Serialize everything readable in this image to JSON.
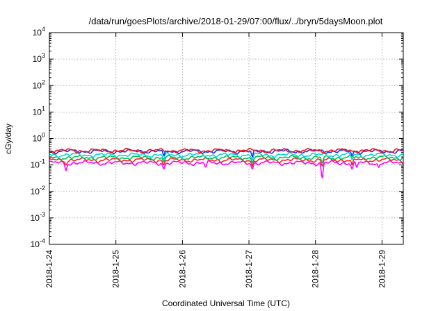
{
  "chart_data": {
    "type": "line",
    "title": "/data/run/goesPlots/archive/2018-01-29/07:00/flux/../bryn/5daysMoon.plot",
    "xlabel": "Coordinated Universal Time (UTC)",
    "ylabel": "cGy/day",
    "yscale": "log",
    "ylim": [
      0.0001,
      10000
    ],
    "xlim": [
      0,
      5.32
    ],
    "x_ticks": [
      {
        "x": 0,
        "label": "2018-1-24"
      },
      {
        "x": 1,
        "label": "2018-1-25"
      },
      {
        "x": 2,
        "label": "2018-1-26"
      },
      {
        "x": 3,
        "label": "2018-1-27"
      },
      {
        "x": 4,
        "label": "2018-1-28"
      },
      {
        "x": 5,
        "label": "2018-1-29"
      }
    ],
    "y_ticks": [
      {
        "value": 0.0001,
        "base": "10",
        "exp": "-4"
      },
      {
        "value": 0.001,
        "base": "10",
        "exp": "-3"
      },
      {
        "value": 0.01,
        "base": "10",
        "exp": "-2"
      },
      {
        "value": 0.1,
        "base": "10",
        "exp": "-1"
      },
      {
        "value": 1,
        "base": "10",
        "exp": "0"
      },
      {
        "value": 10,
        "base": "10",
        "exp": "1"
      },
      {
        "value": 100,
        "base": "10",
        "exp": "2"
      },
      {
        "value": 1000,
        "base": "10",
        "exp": "3"
      },
      {
        "value": 10000,
        "base": "10",
        "exp": "4"
      }
    ],
    "grid": true,
    "series": [
      {
        "color": "#ff00ff",
        "base": 0.12,
        "dips": [
          [
            0.25,
            0.06
          ],
          [
            1.72,
            0.07
          ],
          [
            2.35,
            0.08
          ],
          [
            3.05,
            0.07
          ],
          [
            4.1,
            0.03
          ],
          [
            4.55,
            0.07
          ],
          [
            4.62,
            0.08
          ],
          [
            4.95,
            0.08
          ]
        ]
      },
      {
        "color": "#ff2020",
        "base": 0.155,
        "dips": [
          [
            0.25,
            0.1
          ],
          [
            1.72,
            0.1
          ],
          [
            3.05,
            0.09
          ],
          [
            4.1,
            0.09
          ],
          [
            4.55,
            0.1
          ]
        ]
      },
      {
        "color": "#00c050",
        "base": 0.19,
        "dips": [
          [
            1.72,
            0.13
          ],
          [
            3.05,
            0.12
          ],
          [
            4.1,
            0.12
          ]
        ]
      },
      {
        "color": "#00d8d8",
        "base": 0.24,
        "dips": [
          [
            1.72,
            0.15
          ],
          [
            3.05,
            0.15
          ],
          [
            4.55,
            0.16
          ]
        ]
      },
      {
        "color": "#1030ff",
        "base": 0.33,
        "dips": [
          [
            1.72,
            0.22
          ],
          [
            3.05,
            0.2
          ],
          [
            4.55,
            0.22
          ]
        ]
      },
      {
        "color": "#ff1010",
        "base": 0.35,
        "dips": []
      }
    ]
  }
}
